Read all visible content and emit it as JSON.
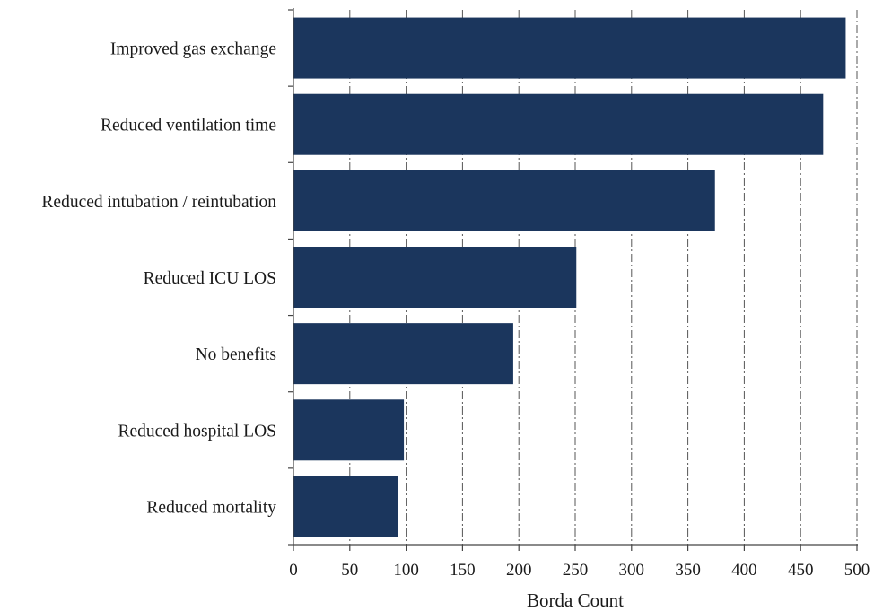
{
  "chart_data": {
    "type": "bar",
    "orientation": "horizontal",
    "categories": [
      "Improved gas exchange",
      "Reduced ventilation time",
      "Reduced intubation / reintubation",
      "Reduced ICU LOS",
      "No benefits",
      "Reduced hospital LOS",
      "Reduced mortality"
    ],
    "values": [
      490,
      470,
      374,
      251,
      195,
      98,
      93
    ],
    "xlabel": "Borda Count",
    "ylabel": "",
    "xlim": [
      0,
      500
    ],
    "xticks": [
      0,
      50,
      100,
      150,
      200,
      250,
      300,
      350,
      400,
      450,
      500
    ],
    "grid": "vertical dash-dot",
    "legend": "none",
    "bar_color": "#1b365d"
  }
}
